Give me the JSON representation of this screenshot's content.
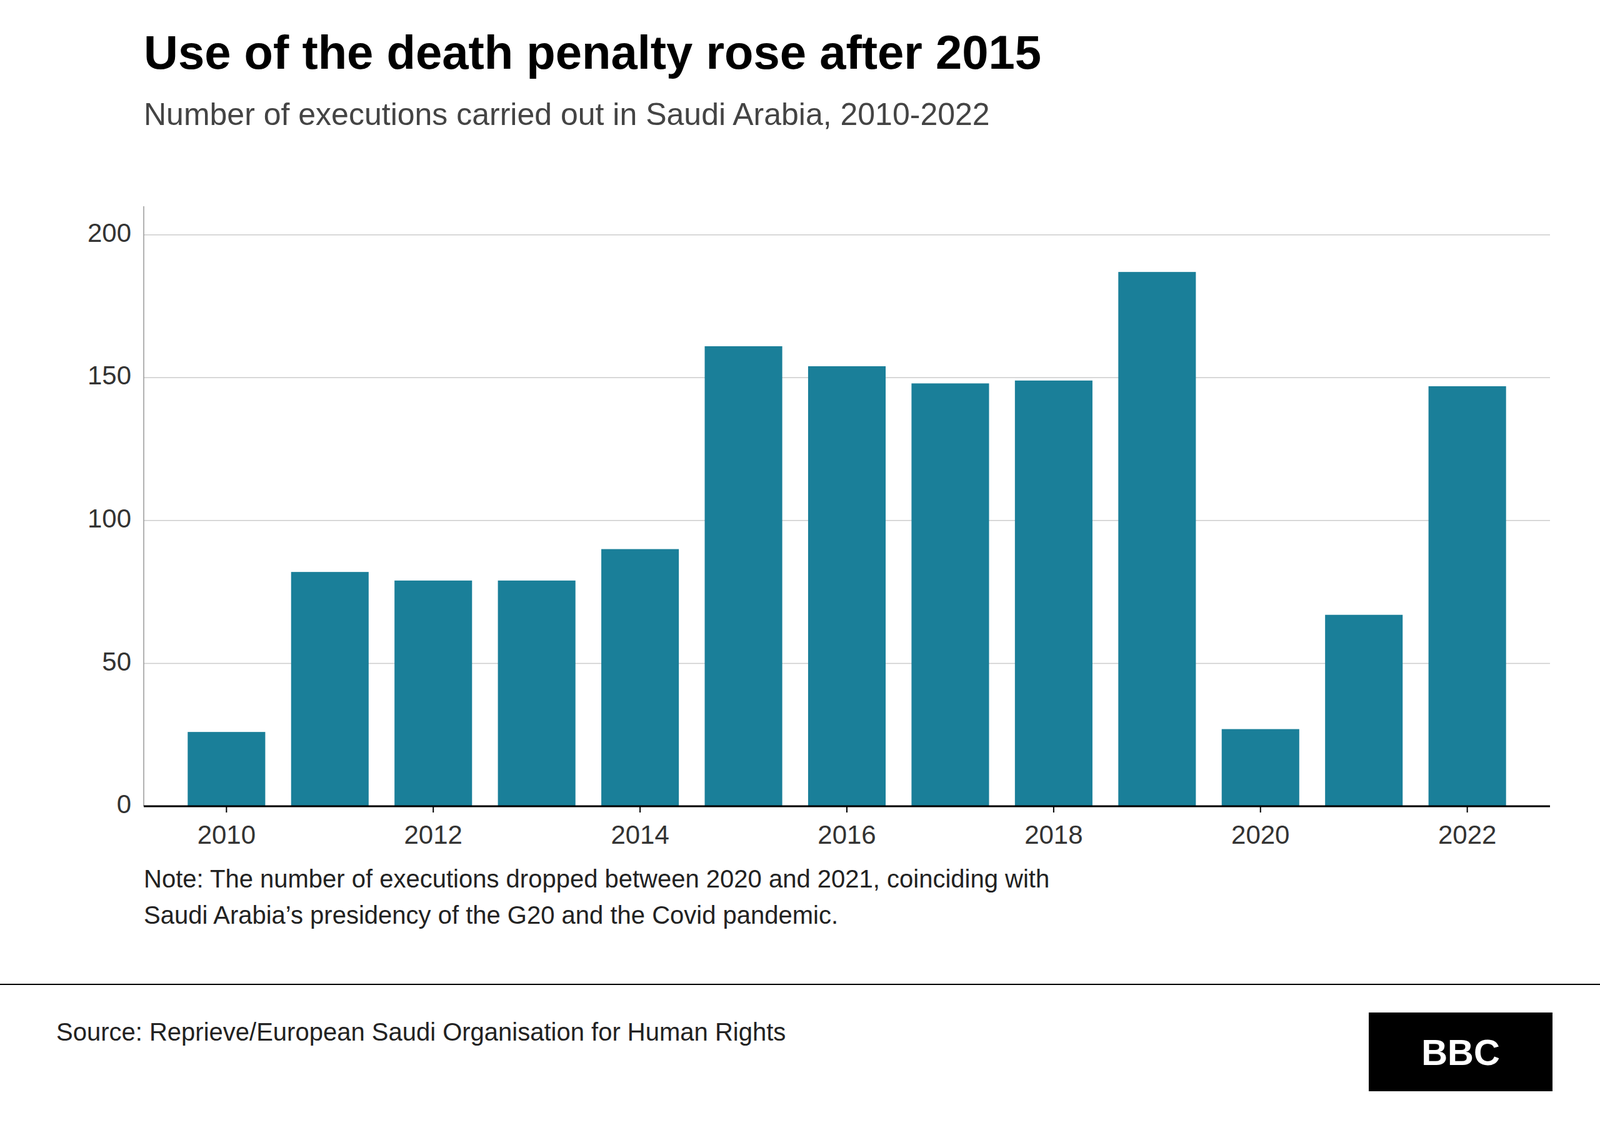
{
  "chart_data": {
    "type": "bar",
    "title": "Use of the death penalty rose after 2015",
    "subtitle": "Number of executions carried out in Saudi Arabia, 2010-2022",
    "x": [
      2010,
      2011,
      2012,
      2013,
      2014,
      2015,
      2016,
      2017,
      2018,
      2019,
      2020,
      2021,
      2022
    ],
    "values": [
      26,
      82,
      79,
      79,
      90,
      161,
      154,
      148,
      149,
      187,
      27,
      67,
      147
    ],
    "color": "#1a7f99",
    "xlim": [
      2009.2,
      2022.8
    ],
    "xticks": [
      2010,
      2012,
      2014,
      2016,
      2018,
      2020,
      2022
    ],
    "ylim": [
      0,
      210
    ],
    "yticks": [
      0,
      50,
      100,
      150,
      200
    ],
    "grid": true,
    "annotations": [
      "Note: The number of executions dropped between 2020 and 2021, coinciding with",
      "Saudi Arabia’s presidency of the G20 and the Covid pandemic."
    ],
    "source": "Source: Reprieve/European Saudi Organisation for Human Rights",
    "logo": "BBC"
  }
}
